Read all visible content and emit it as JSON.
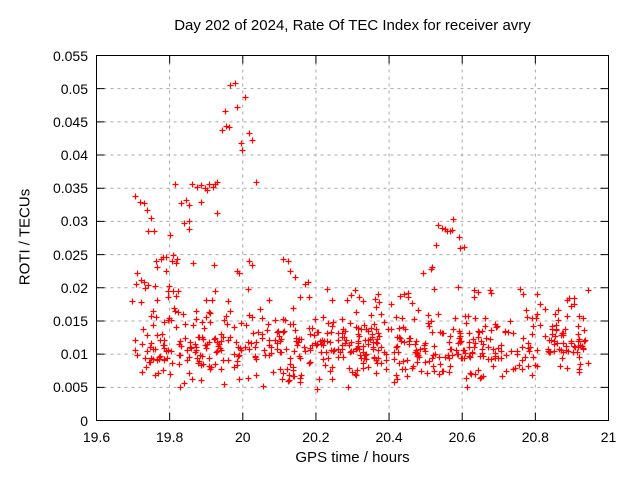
{
  "title": "Day 202 of 2024, Rate Of TEC Index for receiver avry",
  "chart_data": {
    "type": "scatter",
    "title": "Day 202 of 2024, Rate Of TEC Index for receiver avry",
    "xlabel": "GPS time / hours",
    "ylabel": "ROTI / TECUs",
    "xlim": [
      19.6,
      21
    ],
    "ylim": [
      0,
      0.055
    ],
    "xticks": [
      19.6,
      19.8,
      20,
      20.2,
      20.4,
      20.6,
      20.8,
      21
    ],
    "xtick_labels": [
      "19.6",
      "19.8",
      "20",
      "20.2",
      "20.4",
      "20.6",
      "20.8",
      "21"
    ],
    "yticks": [
      0,
      0.005,
      0.01,
      0.015,
      0.02,
      0.025,
      0.03,
      0.035,
      0.04,
      0.045,
      0.05,
      0.055
    ],
    "ytick_labels": [
      "0",
      "0.005",
      "0.01",
      "0.015",
      "0.02",
      "0.025",
      "0.03",
      "0.035",
      "0.04",
      "0.045",
      "0.05",
      "0.055"
    ],
    "grid": {
      "visible": true,
      "style": "dashed",
      "color": "#a8a8a8"
    },
    "border_color": "#000000",
    "legend": "none",
    "marker": {
      "shape": "plus",
      "color": "#ff0000",
      "size": 7
    },
    "feature_points": [
      [
        19.705,
        0.0339
      ],
      [
        19.718,
        0.033
      ],
      [
        19.731,
        0.0327
      ],
      [
        19.737,
        0.0317
      ],
      [
        19.749,
        0.0305
      ],
      [
        19.742,
        0.0286
      ],
      [
        19.757,
        0.0286
      ],
      [
        19.802,
        0.028
      ],
      [
        19.711,
        0.0222
      ],
      [
        19.721,
        0.0211
      ],
      [
        19.731,
        0.0208
      ],
      [
        19.741,
        0.0204
      ],
      [
        19.764,
        0.0241
      ],
      [
        19.776,
        0.0244
      ],
      [
        19.791,
        0.0247
      ],
      [
        19.808,
        0.025
      ],
      [
        19.818,
        0.0238
      ],
      [
        19.766,
        0.0231
      ],
      [
        19.783,
        0.0246
      ],
      [
        19.789,
        0.0226
      ],
      [
        19.807,
        0.024
      ],
      [
        19.821,
        0.0243
      ],
      [
        19.816,
        0.0356
      ],
      [
        19.862,
        0.0356
      ],
      [
        19.874,
        0.0352
      ],
      [
        19.885,
        0.0355
      ],
      [
        19.896,
        0.0351
      ],
      [
        19.907,
        0.0357
      ],
      [
        19.918,
        0.0352
      ],
      [
        19.93,
        0.0359
      ],
      [
        19.83,
        0.0327
      ],
      [
        19.844,
        0.0333
      ],
      [
        19.852,
        0.0324
      ],
      [
        19.885,
        0.0329
      ],
      [
        19.903,
        0.0347
      ],
      [
        19.838,
        0.0297
      ],
      [
        19.852,
        0.0301
      ],
      [
        19.93,
        0.0312
      ],
      [
        19.852,
        0.0288
      ],
      [
        19.865,
        0.0237
      ],
      [
        19.92,
        0.0234
      ],
      [
        19.983,
        0.0226
      ],
      [
        20.016,
        0.0241
      ],
      [
        20.025,
        0.0234
      ],
      [
        19.99,
        0.0222
      ],
      [
        19.966,
        0.0505
      ],
      [
        19.978,
        0.0508
      ],
      [
        20.007,
        0.0488
      ],
      [
        19.951,
        0.0467
      ],
      [
        19.985,
        0.0473
      ],
      [
        19.955,
        0.0444
      ],
      [
        19.961,
        0.0443
      ],
      [
        19.942,
        0.0437
      ],
      [
        20.017,
        0.0433
      ],
      [
        20.024,
        0.0422
      ],
      [
        19.994,
        0.0418
      ],
      [
        19.998,
        0.0408
      ],
      [
        19.925,
        0.0357
      ],
      [
        20.035,
        0.0359
      ],
      [
        20.111,
        0.0244
      ],
      [
        20.124,
        0.0241
      ],
      [
        20.13,
        0.0226
      ],
      [
        20.144,
        0.0216
      ],
      [
        20.171,
        0.0206
      ],
      [
        20.177,
        0.0209
      ],
      [
        20.286,
        0.0182
      ],
      [
        20.296,
        0.0189
      ],
      [
        20.308,
        0.0196
      ],
      [
        20.319,
        0.0186
      ],
      [
        20.33,
        0.018
      ],
      [
        20.369,
        0.0191
      ],
      [
        20.431,
        0.0188
      ],
      [
        20.44,
        0.0191
      ],
      [
        20.452,
        0.0186
      ],
      [
        20.464,
        0.0177
      ],
      [
        20.478,
        0.0167
      ],
      [
        20.494,
        0.0222
      ],
      [
        20.516,
        0.0228
      ],
      [
        20.518,
        0.0231
      ],
      [
        20.527,
        0.0264
      ],
      [
        20.535,
        0.0294
      ],
      [
        20.544,
        0.029
      ],
      [
        20.552,
        0.0288
      ],
      [
        20.559,
        0.0286
      ],
      [
        20.566,
        0.0285
      ],
      [
        20.573,
        0.0287
      ],
      [
        20.576,
        0.0304
      ],
      [
        20.59,
        0.0277
      ],
      [
        20.594,
        0.026
      ],
      [
        20.604,
        0.0261
      ],
      [
        20.677,
        0.0196
      ],
      [
        20.766,
        0.019
      ],
      [
        20.887,
        0.0181
      ],
      [
        20.897,
        0.0172
      ],
      [
        20.905,
        0.0175
      ],
      [
        19.827,
        0.005
      ],
      [
        19.838,
        0.0056
      ],
      [
        19.95,
        0.0055
      ],
      [
        20.202,
        0.0048
      ],
      [
        20.287,
        0.0051
      ],
      [
        20.614,
        0.005
      ]
    ],
    "noise_band": {
      "description": "dense quasi-random ROTI background band, one point per 30 s epoch across visible satellites",
      "seed": 7,
      "count": 640,
      "x_range": [
        19.693,
        20.945
      ],
      "mean_profile": [
        [
          19.693,
          0.0125
        ],
        [
          19.75,
          0.0114
        ],
        [
          19.82,
          0.0118
        ],
        [
          19.95,
          0.0111
        ],
        [
          20.1,
          0.0105
        ],
        [
          20.2,
          0.0108
        ],
        [
          20.3,
          0.0113
        ],
        [
          20.45,
          0.011
        ],
        [
          20.55,
          0.0116
        ],
        [
          20.7,
          0.0112
        ],
        [
          20.85,
          0.0114
        ],
        [
          20.945,
          0.0117
        ]
      ],
      "y_clamp": [
        0.0048,
        0.0205
      ],
      "narrow_spread": 0.0058,
      "wide_spread_low": -0.005,
      "wide_spread_high": 0.009,
      "wide_fraction": 0.22
    }
  }
}
